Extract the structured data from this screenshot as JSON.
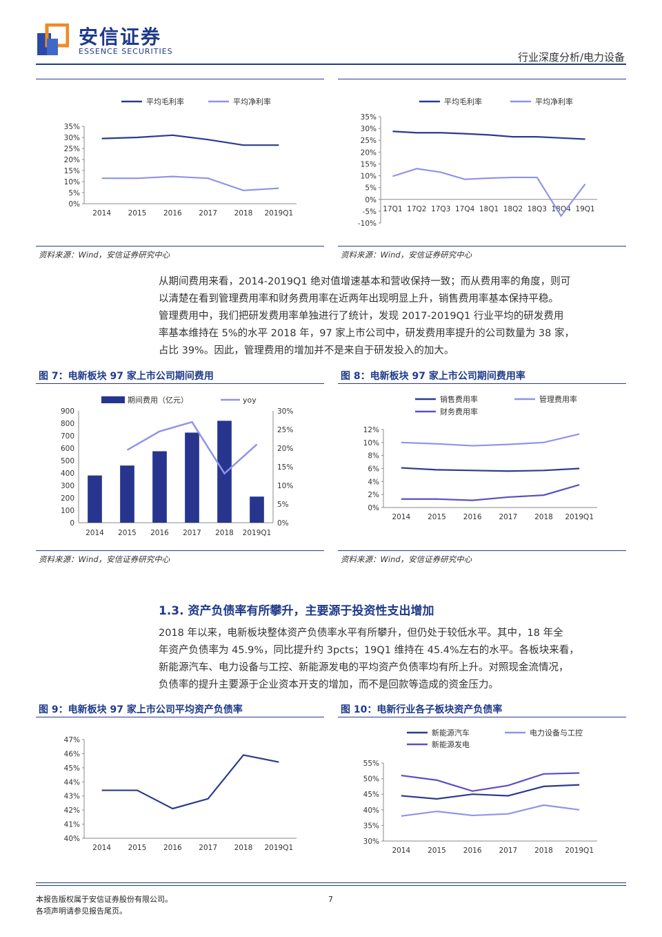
{
  "header": {
    "logo_cn": "安信证券",
    "logo_en": "ESSENCE SECURITIES",
    "report_tag": "行业深度分析/电力设备"
  },
  "colors": {
    "dark_line": "#2b3a8f",
    "light_line": "#8f93ea",
    "mid_line": "#5a4fc2",
    "bar": "#27358f",
    "text_blue": "#1f3a8a"
  },
  "sources": {
    "s1": "资料来源：Wind，安信证券研究中心",
    "s2": "资料来源：Wind，安信证券研究中心",
    "s3": "资料来源：Wind，安信证券研究中心",
    "s4": "资料来源：Wind，安信证券研究中心"
  },
  "paragraph1": "从期间费用来看，2014-2019Q1 绝对值增速基本和营收保持一致；而从费用率的角度，则可以清楚在看到管理费用率和财务费用率在近两年出现明显上升，销售费用率基本保持平稳。管理费用中，我们把研发费用率单独进行了统计，发现 2017-2019Q1 行业平均的研发费用率基本维持在 5%的水平 2018 年，97 家上市公司中，研发费用率提升的公司数量为 38 家，占比 39%。因此，管理费用的增加并不是来自于研发投入的加大。",
  "paragraph1_lines": [
    "从期间费用来看，2014-2019Q1 绝对值增速基本和营收保持一致；而从费用率的角度，则可",
    "以清楚在看到管理费用率和财务费用率在近两年出现明显上升，销售费用率基本保持平稳。",
    "管理费用中，我们把研发费用率单独进行了统计，发现 2017-2019Q1 行业平均的研发费用",
    "率基本维持在 5%的水平 2018 年，97 家上市公司中，研发费用率提升的公司数量为 38 家，",
    "占比 39%。因此，管理费用的增加并不是来自于研发投入的加大。"
  ],
  "section": {
    "title": "1.3. 资产负债率有所攀升，主要源于投资性支出增加"
  },
  "paragraph2_lines": [
    "2018 年以来，电新板块整体资产负债率水平有所攀升，但仍处于较低水平。其中，18 年全",
    "年资产负债率为 45.9%，同比提升约 3pcts；19Q1 维持在 45.4%左右的水平。各板块来看，",
    "新能源汽车、电力设备与工控、新能源发电的平均资产负债率均有所上升。对照现金流情况，",
    "负债率的提升主要源于企业资本开支的增加，而不是回款等造成的资金压力。"
  ],
  "figures": {
    "fig7_title": "图 7：电新板块 97 家上市公司期间费用",
    "fig8_title": "图 8：电新板块 97 家上市公司期间费用率",
    "fig9_title": "图 9：电新板块 97 家上市公司平均资产负债率",
    "fig10_title": "图 10：电新行业各子板块资产负债率"
  },
  "footer": {
    "line1": "本报告版权属于安信证券股份有限公司。",
    "line2": "各项声明请参见报告尾页。",
    "page_number": "7"
  },
  "chart_data": [
    {
      "id": "chart1",
      "type": "line",
      "categories": [
        "2014",
        "2015",
        "2016",
        "2017",
        "2018",
        "2019Q1"
      ],
      "series": [
        {
          "name": "平均毛利率",
          "values": [
            29.5,
            30.0,
            31.0,
            29.0,
            26.5,
            26.5
          ]
        },
        {
          "name": "平均净利率",
          "values": [
            11.5,
            11.5,
            12.3,
            11.5,
            6.0,
            7.0
          ]
        }
      ],
      "yticks": [
        "0%",
        "5%",
        "10%",
        "15%",
        "20%",
        "25%",
        "30%",
        "35%"
      ],
      "ylim": [
        0,
        35
      ],
      "legend": "top"
    },
    {
      "id": "chart2",
      "type": "line",
      "categories": [
        "17Q1",
        "17Q2",
        "17Q3",
        "17Q4",
        "18Q1",
        "18Q2",
        "18Q3",
        "18Q4",
        "19Q1"
      ],
      "series": [
        {
          "name": "平均毛利率",
          "values": [
            28.8,
            28.2,
            28.2,
            27.8,
            27.3,
            26.5,
            26.5,
            26.0,
            25.5
          ]
        },
        {
          "name": "平均净利率",
          "values": [
            9.8,
            13.0,
            11.5,
            8.5,
            9.0,
            9.3,
            9.3,
            -7.0,
            6.5
          ]
        }
      ],
      "yticks": [
        "-10%",
        "-5%",
        "0%",
        "5%",
        "10%",
        "15%",
        "20%",
        "25%",
        "30%",
        "35%"
      ],
      "ylim": [
        -10,
        35
      ],
      "legend": "top"
    },
    {
      "id": "chart3",
      "type": "bar",
      "categories": [
        "2014",
        "2015",
        "2016",
        "2017",
        "2018",
        "2019Q1"
      ],
      "series": [
        {
          "name": "期间费用（亿元）",
          "values": [
            380,
            460,
            575,
            725,
            820,
            210
          ]
        },
        {
          "name": "yoy",
          "values": [
            null,
            19.5,
            24.5,
            27.0,
            13.2,
            21.0
          ]
        }
      ],
      "yticks_left": [
        "0",
        "100",
        "200",
        "300",
        "400",
        "500",
        "600",
        "700",
        "800",
        "900"
      ],
      "ylim_left": [
        0,
        900
      ],
      "yticks_right": [
        "0%",
        "5%",
        "10%",
        "15%",
        "20%",
        "25%",
        "30%"
      ],
      "ylim_right": [
        0,
        30
      ],
      "legend": "top"
    },
    {
      "id": "chart4",
      "type": "line",
      "categories": [
        "2014",
        "2015",
        "2016",
        "2017",
        "2018",
        "2019Q1"
      ],
      "series": [
        {
          "name": "销售费用率",
          "values": [
            6.1,
            5.8,
            5.7,
            5.6,
            5.7,
            6.0
          ]
        },
        {
          "name": "管理费用率",
          "values": [
            10.0,
            9.8,
            9.5,
            9.7,
            10.0,
            11.3
          ]
        },
        {
          "name": "财务费用率",
          "values": [
            1.3,
            1.3,
            1.1,
            1.6,
            1.9,
            3.5
          ]
        }
      ],
      "yticks": [
        "0%",
        "2%",
        "4%",
        "6%",
        "8%",
        "10%",
        "12%"
      ],
      "ylim": [
        0,
        12
      ],
      "legend": "top"
    },
    {
      "id": "chart5",
      "type": "line",
      "categories": [
        "2014",
        "2015",
        "2016",
        "2017",
        "2018",
        "2019Q1"
      ],
      "series": [
        {
          "name": "",
          "values": [
            43.4,
            43.4,
            42.1,
            42.8,
            45.9,
            45.4
          ]
        }
      ],
      "yticks": [
        "40%",
        "41%",
        "42%",
        "43%",
        "44%",
        "45%",
        "46%",
        "47%"
      ],
      "ylim": [
        40,
        47
      ]
    },
    {
      "id": "chart6",
      "type": "line",
      "categories": [
        "2014",
        "2015",
        "2016",
        "2017",
        "2018",
        "2019Q1"
      ],
      "series": [
        {
          "name": "新能源汽车",
          "values": [
            44.5,
            43.5,
            45.0,
            44.5,
            47.5,
            48.0
          ]
        },
        {
          "name": "电力设备与工控",
          "values": [
            38.0,
            39.5,
            38.2,
            38.7,
            41.5,
            40.0
          ]
        },
        {
          "name": "新能源发电",
          "values": [
            51.0,
            49.5,
            46.0,
            47.8,
            51.5,
            51.8
          ]
        }
      ],
      "yticks": [
        "30%",
        "35%",
        "40%",
        "45%",
        "50%",
        "55%"
      ],
      "ylim": [
        30,
        55
      ],
      "legend": "top"
    }
  ]
}
